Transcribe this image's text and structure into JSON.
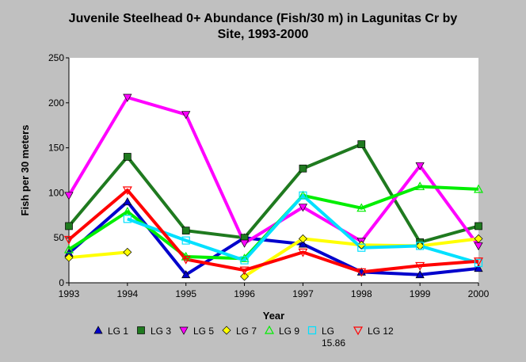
{
  "chart_data": {
    "type": "line",
    "title_line1": "Juvenile Steelhead 0+ Abundance (Fish/30 m) in Lagunitas Cr by",
    "title_line2": "Site, 1993-2000",
    "xlabel": "Year",
    "ylabel": "Fish per 30 meters",
    "x": [
      1993,
      1994,
      1995,
      1996,
      1997,
      1998,
      1999,
      2000
    ],
    "xlim": [
      1993,
      2000
    ],
    "ylim": [
      0,
      250
    ],
    "yticks": [
      0,
      50,
      100,
      150,
      200,
      250
    ],
    "grid": false,
    "legend_position": "bottom",
    "series": [
      {
        "name": "LG 1",
        "color": "#0000cc",
        "marker": "triangle-up",
        "values": [
          33,
          90,
          9,
          50,
          43,
          12,
          9,
          16
        ]
      },
      {
        "name": "LG 3",
        "color": "#1f7a1f",
        "marker": "square",
        "values": [
          63,
          140,
          58,
          50,
          127,
          154,
          45,
          63
        ]
      },
      {
        "name": "LG 5",
        "color": "#ff00ff",
        "marker": "triangle-down",
        "values": [
          97,
          206,
          187,
          44,
          84,
          46,
          130,
          41
        ]
      },
      {
        "name": "LG 7",
        "color": "#ffff00",
        "marker": "diamond",
        "values": [
          28,
          34,
          null,
          7,
          49,
          42,
          41,
          49
        ]
      },
      {
        "name": "LG 9",
        "color": "#00ee00",
        "marker": "triangle-up-open",
        "values": [
          37,
          79,
          29,
          27,
          97,
          83,
          107,
          104
        ]
      },
      {
        "name": "LG 15.86",
        "color": "#00e0ff",
        "marker": "square-open",
        "values": [
          null,
          71,
          47,
          25,
          97,
          39,
          41,
          22
        ]
      },
      {
        "name": "LG 12",
        "color": "#ff0000",
        "marker": "triangle-down-open",
        "values": [
          48,
          103,
          26,
          14,
          34,
          12,
          19,
          24
        ]
      }
    ]
  }
}
